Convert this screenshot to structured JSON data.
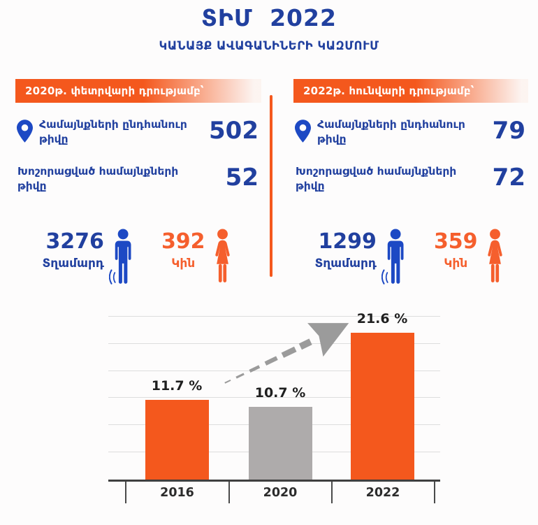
{
  "title": "ՏԻՄ 2022",
  "subtitle": "ԿԱՆԱՅՔ ԱՎԱԳԱՆԻՆԵՐԻ ԿԱԶՄՈՒՄ",
  "colors": {
    "blue_text": "#21409f",
    "blue_accent": "#1d49c4",
    "orange": "#f4581d",
    "orange_soft": "#f55f2d",
    "bar_gray": "#aeabab",
    "arrow_gray": "#9b9b9b",
    "chart_text": "#1f1f1f",
    "axis": "#3f3f3f",
    "grid": "#dddddd"
  },
  "panels": [
    {
      "header": "2020թ. փետրվարի դրությամբ՝",
      "rows": [
        {
          "icon": "location-pin-icon",
          "label": "Համայնքների ընդհանուր թիվը",
          "value": "502"
        },
        {
          "label": "Խոշորացված համայնքների թիվը",
          "value": "52"
        }
      ],
      "men": {
        "icon": "man-icon",
        "count": "3276",
        "label": "Տղամարդ"
      },
      "women": {
        "icon": "woman-icon",
        "count": "392",
        "label": "Կին"
      }
    },
    {
      "header": "2022թ. հունվարի դրությամբ՝",
      "rows": [
        {
          "icon": "location-pin-icon",
          "label": "Համայնքների ընդհանուր թիվը",
          "value": "79"
        },
        {
          "label": "Խոշորացված համայնքների թիվը",
          "value": "72"
        }
      ],
      "men": {
        "icon": "man-icon",
        "count": "1299",
        "label": "Տղամարդ"
      },
      "women": {
        "icon": "woman-icon",
        "count": "359",
        "label": "Կին"
      }
    }
  ],
  "chart_data": {
    "type": "bar",
    "title": "",
    "categories": [
      "2016",
      "2020",
      "2022"
    ],
    "values": [
      11.7,
      10.7,
      21.6
    ],
    "value_labels": [
      "11.7 %",
      "10.7 %",
      "21.6 %"
    ],
    "bar_colors": [
      "#f4581d",
      "#aeabab",
      "#f4581d"
    ],
    "unit": "%",
    "ylim": [
      0,
      24.3
    ],
    "grid": true,
    "gridline_step": 4,
    "legend": false,
    "annotation": "upward-trend-arrow"
  }
}
